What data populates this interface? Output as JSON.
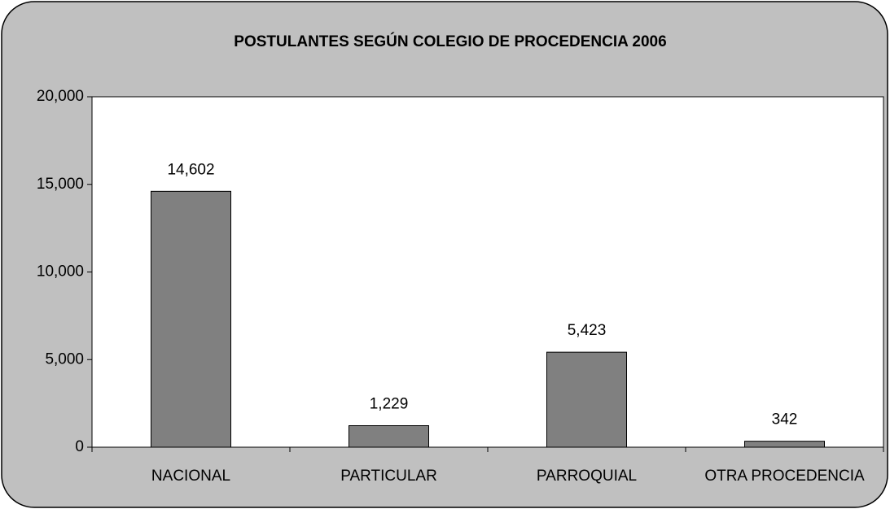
{
  "chart_data": {
    "type": "bar",
    "title": "POSTULANTES SEGÚN COLEGIO DE PROCEDENCIA 2006",
    "categories": [
      "NACIONAL",
      "PARTICULAR",
      "PARROQUIAL",
      "OTRA PROCEDENCIA"
    ],
    "values": [
      14602,
      1229,
      5423,
      342
    ],
    "value_labels": [
      "14,602",
      "1,229",
      "5,423",
      "342"
    ],
    "color": "#808080",
    "ylim": [
      0,
      20000
    ],
    "yticks": [
      0,
      {
        "value": 5000,
        "label": "5,000"
      },
      {
        "value": 10000,
        "label": "10,000"
      },
      {
        "value": 15000,
        "label": "15,000"
      },
      {
        "value": 20000,
        "label": "20,000"
      }
    ],
    "grid": false
  }
}
